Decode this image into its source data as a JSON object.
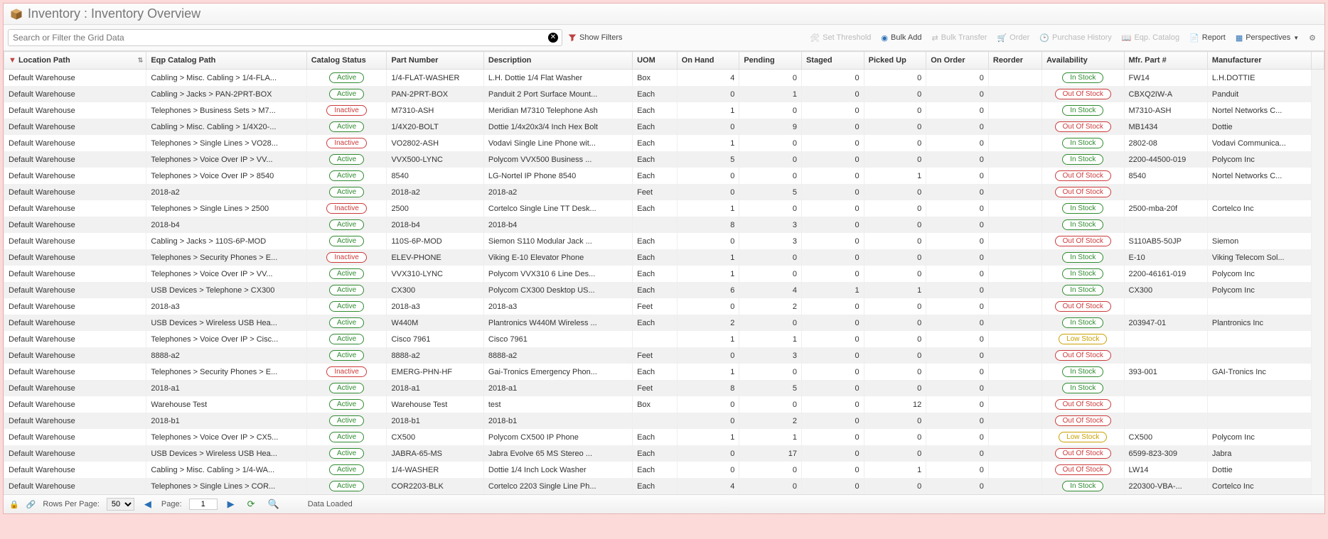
{
  "title": "Inventory : Inventory Overview",
  "search": {
    "placeholder": "Search or Filter the Grid Data"
  },
  "toolbar": {
    "showFilters": "Show Filters",
    "setThreshold": "Set Threshold",
    "bulkAdd": "Bulk Add",
    "bulkTransfer": "Bulk Transfer",
    "order": "Order",
    "purchaseHistory": "Purchase History",
    "eqpCatalog": "Eqp. Catalog",
    "report": "Report",
    "perspectives": "Perspectives"
  },
  "columns": {
    "locationPath": "Location Path",
    "eqpCatalogPath": "Eqp Catalog Path",
    "catalogStatus": "Catalog Status",
    "partNumber": "Part Number",
    "description": "Description",
    "uom": "UOM",
    "onHand": "On Hand",
    "pending": "Pending",
    "staged": "Staged",
    "pickedUp": "Picked Up",
    "onOrder": "On Order",
    "reorder": "Reorder",
    "availability": "Availability",
    "mfrPart": "Mfr. Part #",
    "manufacturer": "Manufacturer"
  },
  "statusLabels": {
    "Active": "Active",
    "Inactive": "Inactive",
    "InStock": "In Stock",
    "OutOfStock": "Out Of Stock",
    "LowStock": "Low Stock"
  },
  "rows": [
    {
      "loc": "Default Warehouse",
      "path": "Cabling > Misc. Cabling > 1/4-FLA...",
      "status": "Active",
      "part": "1/4-FLAT-WASHER",
      "desc": "L.H. Dottie 1/4 Flat Washer",
      "uom": "Box",
      "onHand": 4,
      "pending": 0,
      "staged": 0,
      "picked": 0,
      "onOrder": 0,
      "reorder": "",
      "avail": "InStock",
      "mfr": "FW14",
      "manu": "L.H.DOTTIE"
    },
    {
      "loc": "Default Warehouse",
      "path": "Cabling > Jacks > PAN-2PRT-BOX",
      "status": "Active",
      "part": "PAN-2PRT-BOX",
      "desc": "Panduit 2 Port Surface Mount...",
      "uom": "Each",
      "onHand": 0,
      "pending": 1,
      "staged": 0,
      "picked": 0,
      "onOrder": 0,
      "reorder": "",
      "avail": "OutOfStock",
      "mfr": "CBXQ2IW-A",
      "manu": "Panduit"
    },
    {
      "loc": "Default Warehouse",
      "path": "Telephones > Business Sets > M7...",
      "status": "Inactive",
      "part": "M7310-ASH",
      "desc": "Meridian M7310 Telephone Ash",
      "uom": "Each",
      "onHand": 1,
      "pending": 0,
      "staged": 0,
      "picked": 0,
      "onOrder": 0,
      "reorder": "",
      "avail": "InStock",
      "mfr": "M7310-ASH",
      "manu": "Nortel Networks C..."
    },
    {
      "loc": "Default Warehouse",
      "path": "Cabling > Misc. Cabling > 1/4X20-...",
      "status": "Active",
      "part": "1/4X20-BOLT",
      "desc": "Dottie 1/4x20x3/4 Inch Hex Bolt",
      "uom": "Each",
      "onHand": 0,
      "pending": 9,
      "staged": 0,
      "picked": 0,
      "onOrder": 0,
      "reorder": "",
      "avail": "OutOfStock",
      "mfr": "MB1434",
      "manu": "Dottie"
    },
    {
      "loc": "Default Warehouse",
      "path": "Telephones > Single Lines > VO28...",
      "status": "Inactive",
      "part": "VO2802-ASH",
      "desc": "Vodavi Single Line Phone wit...",
      "uom": "Each",
      "onHand": 1,
      "pending": 0,
      "staged": 0,
      "picked": 0,
      "onOrder": 0,
      "reorder": "",
      "avail": "InStock",
      "mfr": "2802-08",
      "manu": "Vodavi Communica..."
    },
    {
      "loc": "Default Warehouse",
      "path": "Telephones > Voice Over IP > VV...",
      "status": "Active",
      "part": "VVX500-LYNC",
      "desc": "Polycom VVX500 Business ...",
      "uom": "Each",
      "onHand": 5,
      "pending": 0,
      "staged": 0,
      "picked": 0,
      "onOrder": 0,
      "reorder": "",
      "avail": "InStock",
      "mfr": "2200-44500-019",
      "manu": "Polycom Inc"
    },
    {
      "loc": "Default Warehouse",
      "path": "Telephones > Voice Over IP > 8540",
      "status": "Active",
      "part": "8540",
      "desc": "LG-Nortel IP Phone 8540",
      "uom": "Each",
      "onHand": 0,
      "pending": 0,
      "staged": 0,
      "picked": 1,
      "onOrder": 0,
      "reorder": "",
      "avail": "OutOfStock",
      "mfr": "8540",
      "manu": "Nortel Networks C..."
    },
    {
      "loc": "Default Warehouse",
      "path": "2018-a2",
      "status": "Active",
      "part": "2018-a2",
      "desc": "2018-a2",
      "uom": "Feet",
      "onHand": 0,
      "pending": 5,
      "staged": 0,
      "picked": 0,
      "onOrder": 0,
      "reorder": "",
      "avail": "OutOfStock",
      "mfr": "",
      "manu": ""
    },
    {
      "loc": "Default Warehouse",
      "path": "Telephones > Single Lines > 2500",
      "status": "Inactive",
      "part": "2500",
      "desc": "Cortelco Single Line TT Desk...",
      "uom": "Each",
      "onHand": 1,
      "pending": 0,
      "staged": 0,
      "picked": 0,
      "onOrder": 0,
      "reorder": "",
      "avail": "InStock",
      "mfr": "2500-mba-20f",
      "manu": "Cortelco Inc"
    },
    {
      "loc": "Default Warehouse",
      "path": "2018-b4",
      "status": "Active",
      "part": "2018-b4",
      "desc": "2018-b4",
      "uom": "",
      "onHand": 8,
      "pending": 3,
      "staged": 0,
      "picked": 0,
      "onOrder": 0,
      "reorder": "",
      "avail": "InStock",
      "mfr": "",
      "manu": ""
    },
    {
      "loc": "Default Warehouse",
      "path": "Cabling > Jacks > 110S-6P-MOD",
      "status": "Active",
      "part": "110S-6P-MOD",
      "desc": "Siemon S110 Modular Jack ...",
      "uom": "Each",
      "onHand": 0,
      "pending": 3,
      "staged": 0,
      "picked": 0,
      "onOrder": 0,
      "reorder": "",
      "avail": "OutOfStock",
      "mfr": "S110AB5-50JP",
      "manu": "Siemon"
    },
    {
      "loc": "Default Warehouse",
      "path": "Telephones > Security Phones > E...",
      "status": "Inactive",
      "part": "ELEV-PHONE",
      "desc": "Viking E-10 Elevator Phone",
      "uom": "Each",
      "onHand": 1,
      "pending": 0,
      "staged": 0,
      "picked": 0,
      "onOrder": 0,
      "reorder": "",
      "avail": "InStock",
      "mfr": "E-10",
      "manu": "Viking Telecom Sol..."
    },
    {
      "loc": "Default Warehouse",
      "path": "Telephones > Voice Over IP > VV...",
      "status": "Active",
      "part": "VVX310-LYNC",
      "desc": "Polycom VVX310 6 Line Des...",
      "uom": "Each",
      "onHand": 1,
      "pending": 0,
      "staged": 0,
      "picked": 0,
      "onOrder": 0,
      "reorder": "",
      "avail": "InStock",
      "mfr": "2200-46161-019",
      "manu": "Polycom Inc"
    },
    {
      "loc": "Default Warehouse",
      "path": "USB Devices > Telephone > CX300",
      "status": "Active",
      "part": "CX300",
      "desc": "Polycom CX300 Desktop US...",
      "uom": "Each",
      "onHand": 6,
      "pending": 4,
      "staged": 1,
      "picked": 1,
      "onOrder": 0,
      "reorder": "",
      "avail": "InStock",
      "mfr": "CX300",
      "manu": "Polycom Inc"
    },
    {
      "loc": "Default Warehouse",
      "path": "2018-a3",
      "status": "Active",
      "part": "2018-a3",
      "desc": "2018-a3",
      "uom": "Feet",
      "onHand": 0,
      "pending": 2,
      "staged": 0,
      "picked": 0,
      "onOrder": 0,
      "reorder": "",
      "avail": "OutOfStock",
      "mfr": "",
      "manu": ""
    },
    {
      "loc": "Default Warehouse",
      "path": "USB Devices > Wireless USB Hea...",
      "status": "Active",
      "part": "W440M",
      "desc": "Plantronics W440M Wireless ...",
      "uom": "Each",
      "onHand": 2,
      "pending": 0,
      "staged": 0,
      "picked": 0,
      "onOrder": 0,
      "reorder": "",
      "avail": "InStock",
      "mfr": "203947-01",
      "manu": "Plantronics Inc"
    },
    {
      "loc": "Default Warehouse",
      "path": "Telephones > Voice Over IP > Cisc...",
      "status": "Active",
      "part": "Cisco 7961",
      "desc": "Cisco 7961",
      "uom": "",
      "onHand": 1,
      "pending": 1,
      "staged": 0,
      "picked": 0,
      "onOrder": 0,
      "reorder": "",
      "avail": "LowStock",
      "mfr": "",
      "manu": ""
    },
    {
      "loc": "Default Warehouse",
      "path": "8888-a2",
      "status": "Active",
      "part": "8888-a2",
      "desc": "8888-a2",
      "uom": "Feet",
      "onHand": 0,
      "pending": 3,
      "staged": 0,
      "picked": 0,
      "onOrder": 0,
      "reorder": "",
      "avail": "OutOfStock",
      "mfr": "",
      "manu": ""
    },
    {
      "loc": "Default Warehouse",
      "path": "Telephones > Security Phones > E...",
      "status": "Inactive",
      "part": "EMERG-PHN-HF",
      "desc": "Gai-Tronics Emergency Phon...",
      "uom": "Each",
      "onHand": 1,
      "pending": 0,
      "staged": 0,
      "picked": 0,
      "onOrder": 0,
      "reorder": "",
      "avail": "InStock",
      "mfr": "393-001",
      "manu": "GAI-Tronics Inc"
    },
    {
      "loc": "Default Warehouse",
      "path": "2018-a1",
      "status": "Active",
      "part": "2018-a1",
      "desc": "2018-a1",
      "uom": "Feet",
      "onHand": 8,
      "pending": 5,
      "staged": 0,
      "picked": 0,
      "onOrder": 0,
      "reorder": "",
      "avail": "InStock",
      "mfr": "",
      "manu": ""
    },
    {
      "loc": "Default Warehouse",
      "path": "Warehouse Test",
      "status": "Active",
      "part": "Warehouse Test",
      "desc": "test",
      "uom": "Box",
      "onHand": 0,
      "pending": 0,
      "staged": 0,
      "picked": 12,
      "onOrder": 0,
      "reorder": "",
      "avail": "OutOfStock",
      "mfr": "",
      "manu": ""
    },
    {
      "loc": "Default Warehouse",
      "path": "2018-b1",
      "status": "Active",
      "part": "2018-b1",
      "desc": "2018-b1",
      "uom": "",
      "onHand": 0,
      "pending": 2,
      "staged": 0,
      "picked": 0,
      "onOrder": 0,
      "reorder": "",
      "avail": "OutOfStock",
      "mfr": "",
      "manu": ""
    },
    {
      "loc": "Default Warehouse",
      "path": "Telephones > Voice Over IP > CX5...",
      "status": "Active",
      "part": "CX500",
      "desc": "Polycom CX500 IP Phone",
      "uom": "Each",
      "onHand": 1,
      "pending": 1,
      "staged": 0,
      "picked": 0,
      "onOrder": 0,
      "reorder": "",
      "avail": "LowStock",
      "mfr": "CX500",
      "manu": "Polycom Inc"
    },
    {
      "loc": "Default Warehouse",
      "path": "USB Devices > Wireless USB Hea...",
      "status": "Active",
      "part": "JABRA-65-MS",
      "desc": "Jabra Evolve 65 MS Stereo ...",
      "uom": "Each",
      "onHand": 0,
      "pending": 17,
      "staged": 0,
      "picked": 0,
      "onOrder": 0,
      "reorder": "",
      "avail": "OutOfStock",
      "mfr": "6599-823-309",
      "manu": "Jabra"
    },
    {
      "loc": "Default Warehouse",
      "path": "Cabling > Misc. Cabling > 1/4-WA...",
      "status": "Active",
      "part": "1/4-WASHER",
      "desc": "Dottie 1/4 Inch Lock Washer",
      "uom": "Each",
      "onHand": 0,
      "pending": 0,
      "staged": 0,
      "picked": 1,
      "onOrder": 0,
      "reorder": "",
      "avail": "OutOfStock",
      "mfr": "LW14",
      "manu": "Dottie"
    },
    {
      "loc": "Default Warehouse",
      "path": "Telephones > Single Lines > COR...",
      "status": "Active",
      "part": "COR2203-BLK",
      "desc": "Cortelco 2203 Single Line Ph...",
      "uom": "Each",
      "onHand": 4,
      "pending": 0,
      "staged": 0,
      "picked": 0,
      "onOrder": 0,
      "reorder": "",
      "avail": "InStock",
      "mfr": "220300-VBA-...",
      "manu": "Cortelco Inc"
    }
  ],
  "footer": {
    "rowsPerPageLabel": "Rows Per Page:",
    "rowsPerPageValue": "50",
    "pageLabel": "Page:",
    "pageValue": "1",
    "status": "Data Loaded"
  }
}
